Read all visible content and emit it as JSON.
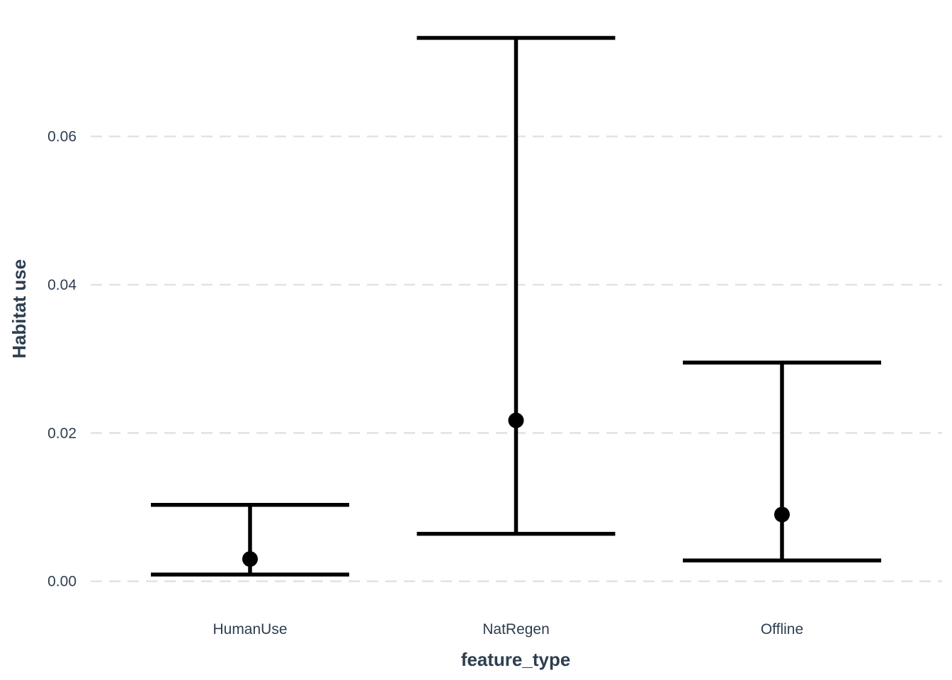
{
  "chart_data": {
    "type": "errorbar",
    "title": "",
    "xlabel": "feature_type",
    "ylabel": "Habitat use",
    "categories": [
      "HumanUse",
      "NatRegen",
      "Offline"
    ],
    "estimate": [
      0.003,
      0.0217,
      0.009
    ],
    "lower": [
      0.0009,
      0.0064,
      0.0028
    ],
    "upper": [
      0.0103,
      0.0733,
      0.0295
    ],
    "y_ticks": [
      0.0,
      0.02,
      0.04,
      0.06
    ],
    "y_tick_labels": [
      "0.00",
      "0.02",
      "0.04",
      "0.06"
    ],
    "ylim": [
      -0.003,
      0.0765
    ],
    "grid": "horizontal-dashed",
    "legend": "none",
    "colors": {
      "marks": "#000000",
      "grid": "#e2e2e2",
      "text": "#2e3d4f"
    }
  }
}
